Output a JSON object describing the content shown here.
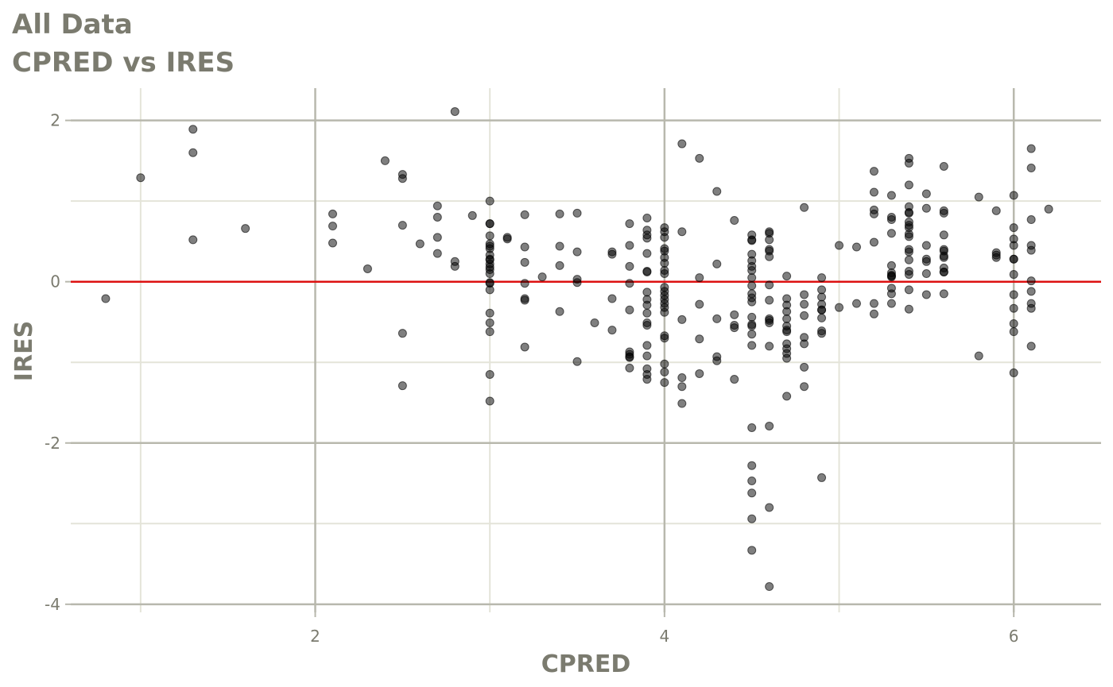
{
  "chart_data": {
    "type": "scatter",
    "title": "All Data",
    "subtitle": "CPRED vs IRES",
    "xlabel": "CPRED",
    "ylabel": "IRES",
    "xlim": [
      0.6,
      6.5
    ],
    "ylim": [
      -4.1,
      2.4
    ],
    "x_ticks": [
      2,
      4,
      6
    ],
    "x_tick_labels": [
      "2",
      "4",
      "6"
    ],
    "y_ticks": [
      -4,
      -2,
      0,
      2
    ],
    "y_tick_labels": [
      "-4",
      "-2",
      "0",
      "2"
    ],
    "x_minor": [
      1,
      3,
      5
    ],
    "y_minor": [
      -3,
      -1,
      1
    ],
    "grid": true,
    "reference_line": {
      "y": 0,
      "color": "#dd1111"
    },
    "colors": {
      "points": "#000000",
      "grid_major": "#b8b8ad",
      "grid_minor": "#e4e4d9",
      "text": "#7b7b6f"
    },
    "points": [
      [
        0.8,
        -0.21
      ],
      [
        1.0,
        1.29
      ],
      [
        1.3,
        1.89
      ],
      [
        1.3,
        1.6
      ],
      [
        1.3,
        0.52
      ],
      [
        1.6,
        0.66
      ],
      [
        2.1,
        0.84
      ],
      [
        2.1,
        0.69
      ],
      [
        2.1,
        0.48
      ],
      [
        2.3,
        0.16
      ],
      [
        2.4,
        1.5
      ],
      [
        2.5,
        1.33
      ],
      [
        2.5,
        1.28
      ],
      [
        2.5,
        0.7
      ],
      [
        2.5,
        -0.64
      ],
      [
        2.5,
        -1.29
      ],
      [
        2.6,
        0.47
      ],
      [
        2.7,
        0.94
      ],
      [
        2.7,
        0.8
      ],
      [
        2.7,
        0.55
      ],
      [
        2.7,
        0.35
      ],
      [
        2.8,
        2.11
      ],
      [
        2.8,
        0.25
      ],
      [
        2.8,
        0.19
      ],
      [
        2.9,
        0.82
      ],
      [
        3.0,
        0.72
      ],
      [
        3.0,
        0.57
      ],
      [
        3.0,
        0.47
      ],
      [
        3.0,
        0.44
      ],
      [
        3.0,
        0.41
      ],
      [
        3.0,
        0.28
      ],
      [
        3.0,
        -0.02
      ],
      [
        3.0,
        -0.39
      ],
      [
        3.0,
        -0.51
      ],
      [
        3.0,
        -0.62
      ],
      [
        3.0,
        -1.15
      ],
      [
        3.0,
        0.72
      ],
      [
        3.0,
        0.33
      ],
      [
        3.0,
        0.22
      ],
      [
        3.0,
        0.18
      ],
      [
        3.0,
        0.15
      ],
      [
        3.0,
        0.1
      ],
      [
        3.0,
        -0.01
      ],
      [
        3.0,
        -0.1
      ],
      [
        3.0,
        -1.48
      ],
      [
        3.0,
        1.0
      ],
      [
        3.0,
        0.27
      ],
      [
        3.1,
        0.55
      ],
      [
        3.1,
        0.53
      ],
      [
        3.2,
        -0.02
      ],
      [
        3.2,
        -0.23
      ],
      [
        3.2,
        -0.81
      ],
      [
        3.2,
        0.83
      ],
      [
        3.2,
        0.43
      ],
      [
        3.2,
        0.24
      ],
      [
        3.2,
        -0.21
      ],
      [
        3.3,
        0.06
      ],
      [
        3.4,
        0.84
      ],
      [
        3.4,
        0.44
      ],
      [
        3.4,
        -0.37
      ],
      [
        3.4,
        0.2
      ],
      [
        3.5,
        0.85
      ],
      [
        3.5,
        0.37
      ],
      [
        3.5,
        0.03
      ],
      [
        3.5,
        -0.01
      ],
      [
        3.5,
        -0.99
      ],
      [
        3.6,
        -0.51
      ],
      [
        3.7,
        0.37
      ],
      [
        3.7,
        -0.21
      ],
      [
        3.7,
        -0.6
      ],
      [
        3.7,
        0.34
      ],
      [
        3.8,
        0.72
      ],
      [
        3.8,
        0.45
      ],
      [
        3.8,
        -0.87
      ],
      [
        3.8,
        -0.9
      ],
      [
        3.8,
        -0.93
      ],
      [
        3.8,
        -0.35
      ],
      [
        3.8,
        0.19
      ],
      [
        3.8,
        -0.94
      ],
      [
        3.8,
        -1.07
      ],
      [
        3.8,
        -0.02
      ],
      [
        3.9,
        0.79
      ],
      [
        3.9,
        0.13
      ],
      [
        3.9,
        -0.22
      ],
      [
        3.9,
        -0.51
      ],
      [
        3.9,
        -1.21
      ],
      [
        3.9,
        0.12
      ],
      [
        3.9,
        -1.08
      ],
      [
        3.9,
        0.64
      ],
      [
        3.9,
        0.58
      ],
      [
        3.9,
        0.54
      ],
      [
        3.9,
        0.35
      ],
      [
        3.9,
        -0.13
      ],
      [
        3.9,
        -0.39
      ],
      [
        3.9,
        -0.54
      ],
      [
        3.9,
        -0.79
      ],
      [
        3.9,
        -0.92
      ],
      [
        3.9,
        -1.15
      ],
      [
        3.9,
        -0.29
      ],
      [
        4.0,
        0.62
      ],
      [
        4.0,
        0.55
      ],
      [
        4.0,
        0.41
      ],
      [
        4.0,
        0.38
      ],
      [
        4.0,
        0.3
      ],
      [
        4.0,
        0.23
      ],
      [
        4.0,
        0.14
      ],
      [
        4.0,
        0.1
      ],
      [
        4.0,
        -0.07
      ],
      [
        4.0,
        -0.12
      ],
      [
        4.0,
        -0.17
      ],
      [
        4.0,
        -0.22
      ],
      [
        4.0,
        -0.32
      ],
      [
        4.0,
        -0.38
      ],
      [
        4.0,
        -0.67
      ],
      [
        4.0,
        -0.7
      ],
      [
        4.0,
        -1.25
      ],
      [
        4.0,
        0.67
      ],
      [
        4.0,
        -0.27
      ],
      [
        4.0,
        -1.02
      ],
      [
        4.0,
        -1.12
      ],
      [
        4.1,
        -0.47
      ],
      [
        4.1,
        -1.51
      ],
      [
        4.1,
        1.71
      ],
      [
        4.1,
        0.62
      ],
      [
        4.1,
        -1.19
      ],
      [
        4.1,
        -1.3
      ],
      [
        4.2,
        -1.14
      ],
      [
        4.2,
        1.53
      ],
      [
        4.2,
        0.05
      ],
      [
        4.2,
        -0.71
      ],
      [
        4.2,
        -0.28
      ],
      [
        4.3,
        -0.93
      ],
      [
        4.3,
        -0.98
      ],
      [
        4.3,
        1.12
      ],
      [
        4.3,
        -0.46
      ],
      [
        4.3,
        0.22
      ],
      [
        4.4,
        -0.54
      ],
      [
        4.4,
        -0.41
      ],
      [
        4.4,
        0.76
      ],
      [
        4.4,
        -0.57
      ],
      [
        4.4,
        -1.21
      ],
      [
        4.5,
        -0.15
      ],
      [
        4.5,
        0.58
      ],
      [
        4.5,
        0.51
      ],
      [
        4.5,
        0.14
      ],
      [
        4.5,
        0.52
      ],
      [
        4.5,
        0.26
      ],
      [
        4.5,
        0.05
      ],
      [
        4.5,
        -0.05
      ],
      [
        4.5,
        -0.25
      ],
      [
        4.5,
        -0.2
      ],
      [
        4.5,
        -0.53
      ],
      [
        4.5,
        -0.55
      ],
      [
        4.5,
        -2.62
      ],
      [
        4.5,
        -2.94
      ],
      [
        4.5,
        -2.28
      ],
      [
        4.5,
        -2.47
      ],
      [
        4.5,
        -1.81
      ],
      [
        4.5,
        0.34
      ],
      [
        4.5,
        0.19
      ],
      [
        4.5,
        -0.44
      ],
      [
        4.5,
        -0.65
      ],
      [
        4.5,
        -0.79
      ],
      [
        4.5,
        -3.33
      ],
      [
        4.6,
        0.6
      ],
      [
        4.6,
        0.38
      ],
      [
        4.6,
        0.4
      ],
      [
        4.6,
        0.31
      ],
      [
        4.6,
        -0.04
      ],
      [
        4.6,
        -0.8
      ],
      [
        4.6,
        -0.46
      ],
      [
        4.6,
        -0.48
      ],
      [
        4.6,
        -0.51
      ],
      [
        4.6,
        -1.79
      ],
      [
        4.6,
        -3.78
      ],
      [
        4.6,
        0.62
      ],
      [
        4.6,
        0.52
      ],
      [
        4.6,
        -0.23
      ],
      [
        4.6,
        -2.8
      ],
      [
        4.7,
        0.07
      ],
      [
        4.7,
        -0.21
      ],
      [
        4.7,
        -0.37
      ],
      [
        4.7,
        -0.46
      ],
      [
        4.7,
        -0.77
      ],
      [
        4.7,
        -1.42
      ],
      [
        4.7,
        -0.29
      ],
      [
        4.7,
        -0.55
      ],
      [
        4.7,
        -0.6
      ],
      [
        4.7,
        -0.62
      ],
      [
        4.7,
        -0.83
      ],
      [
        4.7,
        -0.89
      ],
      [
        4.7,
        -0.95
      ],
      [
        4.8,
        -0.16
      ],
      [
        4.8,
        -0.42
      ],
      [
        4.8,
        -0.69
      ],
      [
        4.8,
        -0.77
      ],
      [
        4.8,
        -1.06
      ],
      [
        4.8,
        0.92
      ],
      [
        4.8,
        -0.28
      ],
      [
        4.8,
        -1.3
      ],
      [
        4.9,
        -0.35
      ],
      [
        4.9,
        -0.64
      ],
      [
        4.9,
        0.05
      ],
      [
        4.9,
        -2.43
      ],
      [
        4.9,
        -0.45
      ],
      [
        4.9,
        -0.1
      ],
      [
        4.9,
        -0.28
      ],
      [
        4.9,
        -0.35
      ],
      [
        4.9,
        -0.61
      ],
      [
        4.9,
        -0.19
      ],
      [
        5.0,
        0.45
      ],
      [
        5.0,
        -0.32
      ],
      [
        5.1,
        -0.27
      ],
      [
        5.1,
        0.43
      ],
      [
        5.2,
        0.84
      ],
      [
        5.2,
        -0.27
      ],
      [
        5.2,
        1.37
      ],
      [
        5.2,
        1.11
      ],
      [
        5.2,
        0.89
      ],
      [
        5.2,
        0.49
      ],
      [
        5.2,
        -0.4
      ],
      [
        5.3,
        1.07
      ],
      [
        5.3,
        0.77
      ],
      [
        5.3,
        0.08
      ],
      [
        5.3,
        0.07
      ],
      [
        5.3,
        0.06
      ],
      [
        5.3,
        -0.08
      ],
      [
        5.3,
        0.2
      ],
      [
        5.3,
        -0.27
      ],
      [
        5.3,
        0.6
      ],
      [
        5.3,
        0.8
      ],
      [
        5.3,
        0.11
      ],
      [
        5.3,
        -0.15
      ],
      [
        5.4,
        0.85
      ],
      [
        5.4,
        0.74
      ],
      [
        5.4,
        1.53
      ],
      [
        5.4,
        1.47
      ],
      [
        5.4,
        1.2
      ],
      [
        5.4,
        0.93
      ],
      [
        5.4,
        0.86
      ],
      [
        5.4,
        0.7
      ],
      [
        5.4,
        0.67
      ],
      [
        5.4,
        0.59
      ],
      [
        5.4,
        0.56
      ],
      [
        5.4,
        0.4
      ],
      [
        5.4,
        0.37
      ],
      [
        5.4,
        0.27
      ],
      [
        5.4,
        0.13
      ],
      [
        5.4,
        0.09
      ],
      [
        5.4,
        -0.1
      ],
      [
        5.4,
        -0.34
      ],
      [
        5.5,
        1.09
      ],
      [
        5.5,
        0.28
      ],
      [
        5.5,
        0.25
      ],
      [
        5.5,
        0.45
      ],
      [
        5.5,
        0.91
      ],
      [
        5.5,
        0.1
      ],
      [
        5.5,
        -0.16
      ],
      [
        5.6,
        0.4
      ],
      [
        5.6,
        0.38
      ],
      [
        5.6,
        0.58
      ],
      [
        5.6,
        0.85
      ],
      [
        5.6,
        0.17
      ],
      [
        5.6,
        0.12
      ],
      [
        5.6,
        1.43
      ],
      [
        5.6,
        0.88
      ],
      [
        5.6,
        0.32
      ],
      [
        5.6,
        0.3
      ],
      [
        5.6,
        0.12
      ],
      [
        5.6,
        -0.15
      ],
      [
        5.8,
        1.05
      ],
      [
        5.8,
        -0.92
      ],
      [
        5.9,
        0.3
      ],
      [
        5.9,
        0.88
      ],
      [
        5.9,
        0.36
      ],
      [
        5.9,
        0.33
      ],
      [
        6.0,
        1.07
      ],
      [
        6.0,
        0.53
      ],
      [
        6.0,
        0.45
      ],
      [
        6.0,
        0.28
      ],
      [
        6.0,
        -0.33
      ],
      [
        6.0,
        -0.52
      ],
      [
        6.0,
        -0.62
      ],
      [
        6.0,
        0.67
      ],
      [
        6.0,
        0.28
      ],
      [
        6.0,
        0.09
      ],
      [
        6.0,
        -0.16
      ],
      [
        6.0,
        -1.13
      ],
      [
        6.1,
        1.41
      ],
      [
        6.1,
        0.77
      ],
      [
        6.1,
        1.65
      ],
      [
        6.1,
        0.45
      ],
      [
        6.1,
        0.39
      ],
      [
        6.1,
        0.01
      ],
      [
        6.1,
        -0.12
      ],
      [
        6.1,
        -0.27
      ],
      [
        6.1,
        -0.33
      ],
      [
        6.1,
        -0.8
      ],
      [
        6.2,
        0.9
      ]
    ]
  }
}
